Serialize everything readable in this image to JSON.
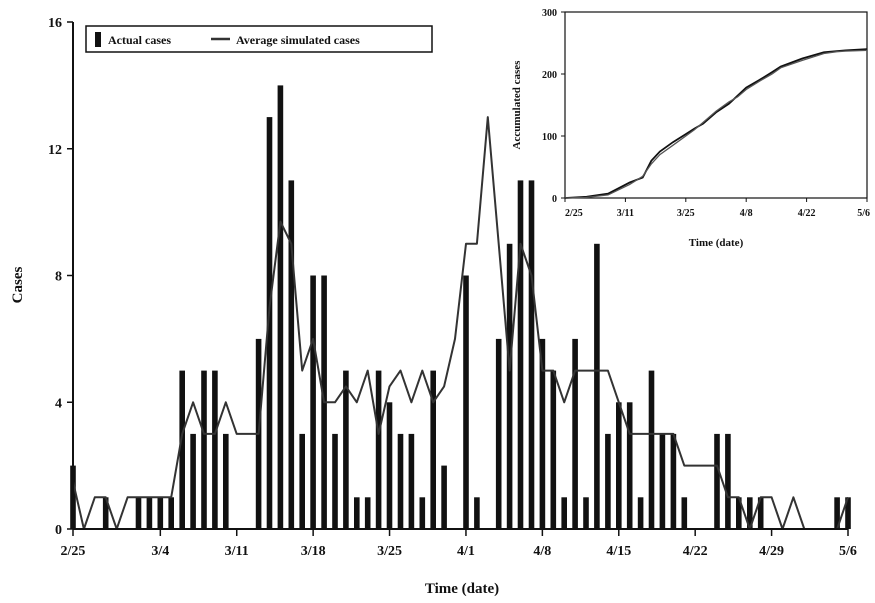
{
  "chart_data": [
    {
      "type": "bar",
      "title": "",
      "xlabel": "Time (date)",
      "ylabel": "Cases",
      "ylim": [
        0,
        16
      ],
      "yticks": [
        "0",
        "4",
        "8",
        "12",
        "16"
      ],
      "xticks": [
        "2/25",
        "3/4",
        "3/11",
        "3/18",
        "3/25",
        "4/1",
        "4/8",
        "4/15",
        "4/22",
        "4/29",
        "5/6"
      ],
      "grid": false,
      "legend_position": "top-left",
      "x": [
        "2/25",
        "2/26",
        "2/27",
        "2/28",
        "2/29",
        "3/1",
        "3/2",
        "3/3",
        "3/4",
        "3/5",
        "3/6",
        "3/7",
        "3/8",
        "3/9",
        "3/10",
        "3/11",
        "3/12",
        "3/13",
        "3/14",
        "3/15",
        "3/16",
        "3/17",
        "3/18",
        "3/19",
        "3/20",
        "3/21",
        "3/22",
        "3/23",
        "3/24",
        "3/25",
        "3/26",
        "3/27",
        "3/28",
        "3/29",
        "3/30",
        "3/31",
        "4/1",
        "4/2",
        "4/3",
        "4/4",
        "4/5",
        "4/6",
        "4/7",
        "4/8",
        "4/9",
        "4/10",
        "4/11",
        "4/12",
        "4/13",
        "4/14",
        "4/15",
        "4/16",
        "4/17",
        "4/18",
        "4/19",
        "4/20",
        "4/21",
        "4/22",
        "4/23",
        "4/24",
        "4/25",
        "4/26",
        "4/27",
        "4/28",
        "4/29",
        "4/30",
        "5/1",
        "5/2",
        "5/3",
        "5/4",
        "5/5",
        "5/6"
      ],
      "series": [
        {
          "name": "Actual cases",
          "kind": "bar",
          "values": [
            2,
            0,
            0,
            1,
            0,
            0,
            1,
            1,
            1,
            1,
            5,
            3,
            5,
            5,
            3,
            0,
            0,
            6,
            13,
            14,
            11,
            3,
            8,
            8,
            3,
            5,
            1,
            1,
            5,
            4,
            3,
            3,
            1,
            5,
            2,
            0,
            8,
            1,
            0,
            6,
            9,
            11,
            11,
            6,
            5,
            1,
            6,
            1,
            9,
            3,
            4,
            4,
            1,
            5,
            3,
            3,
            1,
            0,
            0,
            3,
            3,
            1,
            1,
            1,
            0,
            0,
            0,
            0,
            0,
            0,
            1,
            1
          ],
          "color": "#111111"
        },
        {
          "name": "Average simulated cases",
          "kind": "line",
          "values": [
            1.5,
            0,
            1,
            1,
            0,
            1,
            1,
            1,
            1,
            1,
            3,
            4,
            3,
            3,
            4,
            3,
            3,
            3,
            7,
            9.7,
            9,
            5,
            6,
            4,
            4,
            4.5,
            4,
            5,
            3,
            4.5,
            5,
            4,
            5,
            4,
            4.5,
            6,
            9,
            9,
            13,
            9,
            5,
            9,
            8,
            5,
            5,
            4,
            5,
            5,
            5,
            5,
            4,
            3,
            3,
            3,
            3,
            3,
            2,
            2,
            2,
            2,
            1,
            1,
            0,
            1,
            1,
            0,
            1,
            0,
            0,
            0,
            0,
            1
          ],
          "color": "#333333"
        }
      ]
    },
    {
      "type": "line",
      "title": "",
      "xlabel": "Time (date)",
      "ylabel": "Accumulated cases",
      "ylim": [
        0,
        300
      ],
      "yticks": [
        "0",
        "100",
        "200",
        "300"
      ],
      "xticks": [
        "2/25",
        "3/11",
        "3/25",
        "4/8",
        "4/22",
        "5/6"
      ],
      "grid": false,
      "x": [
        0,
        5,
        10,
        15,
        18,
        20,
        22,
        25,
        28,
        30,
        32,
        35,
        38,
        40,
        42,
        45,
        48,
        50,
        55,
        60,
        63,
        65,
        70
      ],
      "series": [
        {
          "name": "Actual",
          "values": [
            0,
            2,
            7,
            25,
            33,
            60,
            75,
            90,
            103,
            112,
            120,
            138,
            152,
            165,
            178,
            190,
            203,
            212,
            225,
            235,
            237,
            238,
            240
          ],
          "color": "#111111"
        },
        {
          "name": "Simulated",
          "values": [
            0,
            1,
            5,
            22,
            35,
            55,
            70,
            85,
            100,
            110,
            122,
            140,
            155,
            163,
            175,
            188,
            200,
            210,
            222,
            233,
            236,
            237,
            238
          ],
          "color": "#555555"
        }
      ]
    }
  ]
}
